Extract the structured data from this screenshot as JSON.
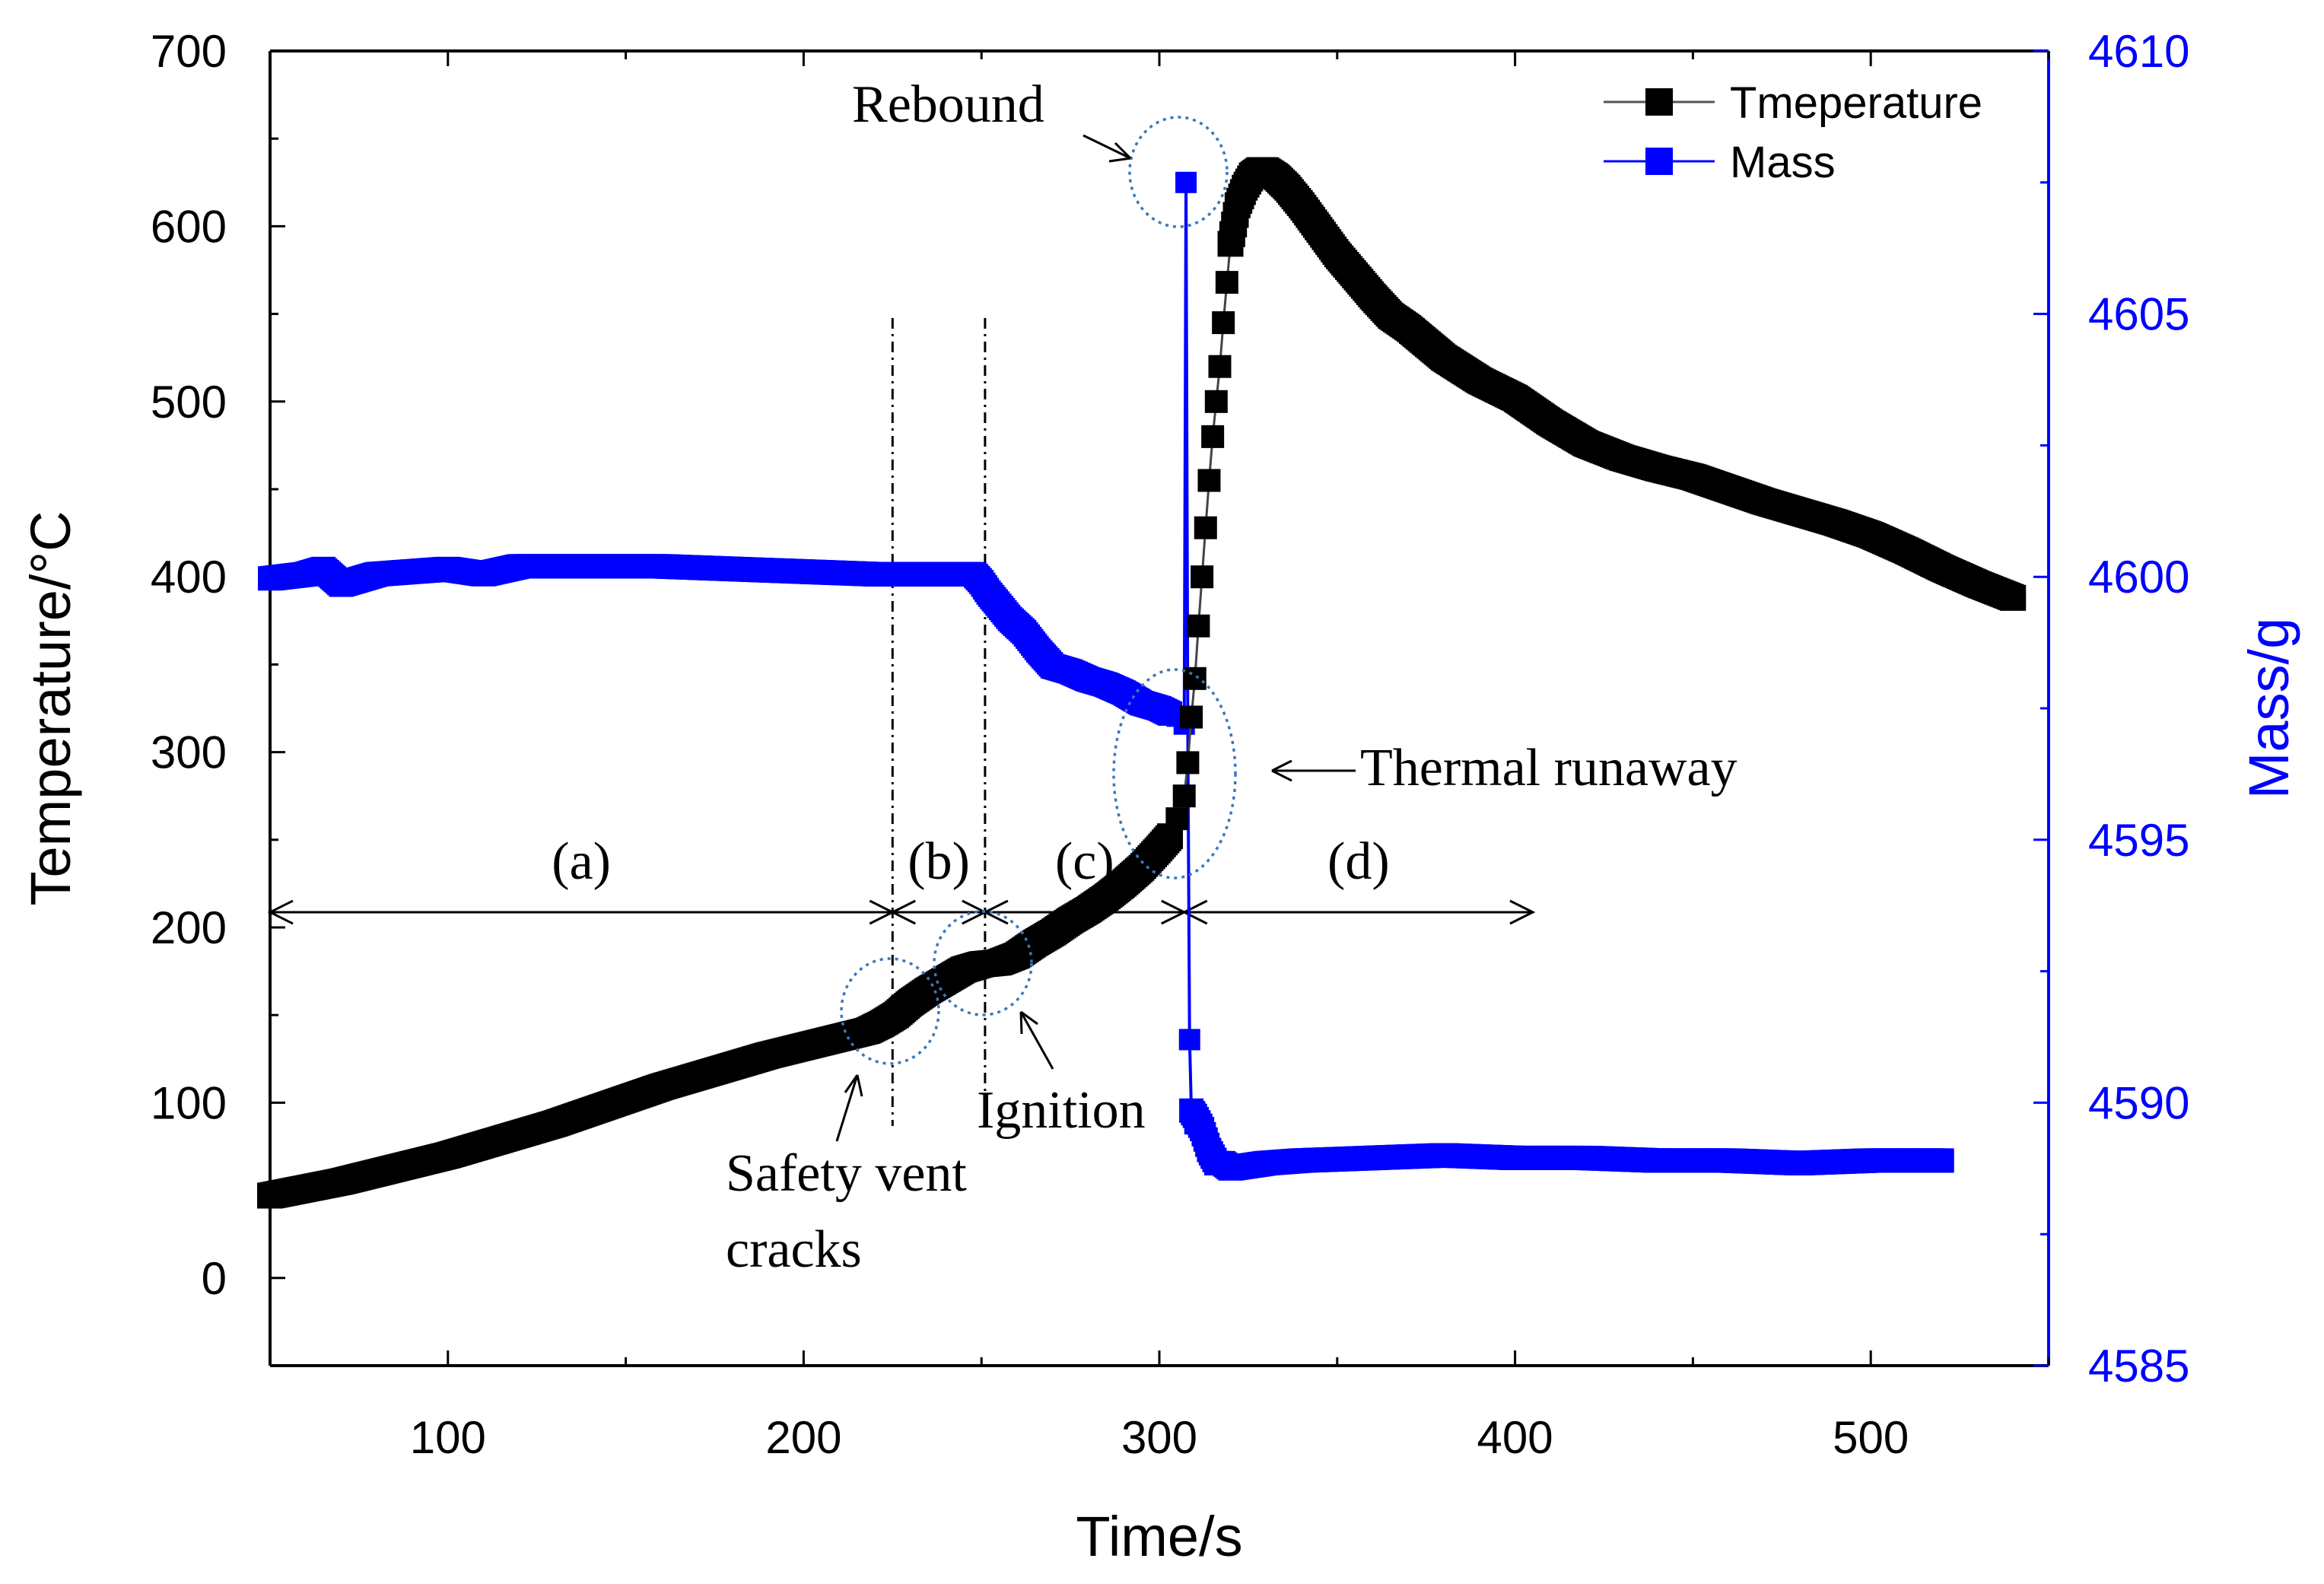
{
  "chart_data": {
    "type": "line",
    "title": "",
    "xlabel": "Time/s",
    "ylabel_left": "Temperature/°C",
    "ylabel_right": "Mass/g",
    "xlim": [
      50,
      550
    ],
    "ylim_left": [
      -50,
      700
    ],
    "ylim_right": [
      4585,
      4610
    ],
    "x_ticks": [
      100,
      200,
      300,
      400,
      500
    ],
    "y_ticks_left": [
      0,
      100,
      200,
      300,
      400,
      500,
      600,
      700
    ],
    "y_ticks_right": [
      4585,
      4590,
      4595,
      4600,
      4605,
      4610
    ],
    "grid": false,
    "legend_position": "top-right",
    "colors": {
      "temperature": "#000000",
      "mass": "#0000ff",
      "annotation": "#3a78b8"
    },
    "series": [
      {
        "name": "Tmeperature",
        "axis": "left",
        "color": "#000000",
        "x": [
          50,
          60,
          70,
          80,
          90,
          100,
          110,
          120,
          130,
          140,
          150,
          160,
          170,
          180,
          190,
          200,
          210,
          218,
          222,
          226,
          230,
          235,
          240,
          245,
          250,
          255,
          260,
          265,
          270,
          275,
          280,
          285,
          290,
          295,
          300,
          303,
          305,
          307,
          308,
          309,
          310,
          311,
          312,
          313,
          314,
          315,
          316,
          317,
          318,
          319,
          320,
          322,
          324,
          326,
          328,
          330,
          333,
          336,
          340,
          345,
          350,
          355,
          360,
          365,
          370,
          380,
          390,
          400,
          410,
          420,
          430,
          440,
          450,
          460,
          470,
          480,
          490,
          500,
          510,
          520,
          530,
          540
        ],
        "values": [
          47,
          51,
          55,
          60,
          65,
          70,
          76,
          82,
          88,
          95,
          102,
          109,
          115,
          121,
          127,
          132,
          137,
          141,
          145,
          150,
          157,
          164,
          170,
          176,
          179,
          180,
          184,
          191,
          197,
          204,
          210,
          217,
          225,
          234,
          245,
          252,
          262,
          275,
          294,
          320,
          342,
          372,
          400,
          428,
          455,
          480,
          500,
          520,
          545,
          568,
          590,
          612,
          622,
          629,
          632,
          632,
          628,
          622,
          612,
          598,
          584,
          572,
          560,
          549,
          542,
          525,
          512,
          502,
          488,
          476,
          468,
          462,
          457,
          450,
          443,
          437,
          431,
          424,
          415,
          405,
          396,
          388
        ]
      },
      {
        "name": "Mass",
        "axis": "right",
        "color": "#0000ff",
        "x": [
          50,
          60,
          65,
          70,
          80,
          90,
          100,
          110,
          120,
          140,
          160,
          180,
          200,
          220,
          230,
          240,
          248,
          250,
          252,
          255,
          258,
          262,
          266,
          270,
          275,
          280,
          285,
          290,
          295,
          300,
          303,
          305,
          306,
          307,
          307.5,
          308,
          308.5,
          309,
          310,
          312,
          314,
          316,
          318,
          320,
          325,
          330,
          340,
          360,
          380,
          400,
          420,
          440,
          460,
          480,
          500,
          520
        ],
        "values": [
          4599.97,
          4600.05,
          4600.15,
          4599.85,
          4600.05,
          4600.1,
          4600.15,
          4600.05,
          4600.2,
          4600.2,
          4600.2,
          4600.15,
          4600.1,
          4600.05,
          4600.05,
          4600.05,
          4600.05,
          4599.9,
          4599.7,
          4599.45,
          4599.2,
          4598.95,
          4598.6,
          4598.3,
          4598.2,
          4598.05,
          4597.95,
          4597.8,
          4597.6,
          4597.5,
          4597.4,
          4597.35,
          4597.3,
          4597.2,
          4607.5,
          4597.1,
          4591.2,
          4589.85,
          4589.75,
          4589.5,
          4589.1,
          4588.85,
          4588.85,
          4588.75,
          4588.8,
          4588.85,
          4588.9,
          4588.95,
          4589.0,
          4588.95,
          4588.95,
          4588.9,
          4588.9,
          4588.85,
          4588.9,
          4588.9
        ]
      }
    ],
    "phases": [
      {
        "label": "(a)",
        "from": 50,
        "to": 225
      },
      {
        "label": "(b)",
        "from": 225,
        "to": 251
      },
      {
        "label": "(c)",
        "from": 251,
        "to": 307
      },
      {
        "label": "(d)",
        "from": 307,
        "to": 405
      }
    ],
    "vlines": [
      225,
      251
    ],
    "annotations": {
      "rebound": "Rebound",
      "thermal_runaway": "Thermal runaway",
      "ignition": "Ignition",
      "safety_vent_line1": "Safety vent",
      "safety_vent_line2": "cracks"
    }
  }
}
